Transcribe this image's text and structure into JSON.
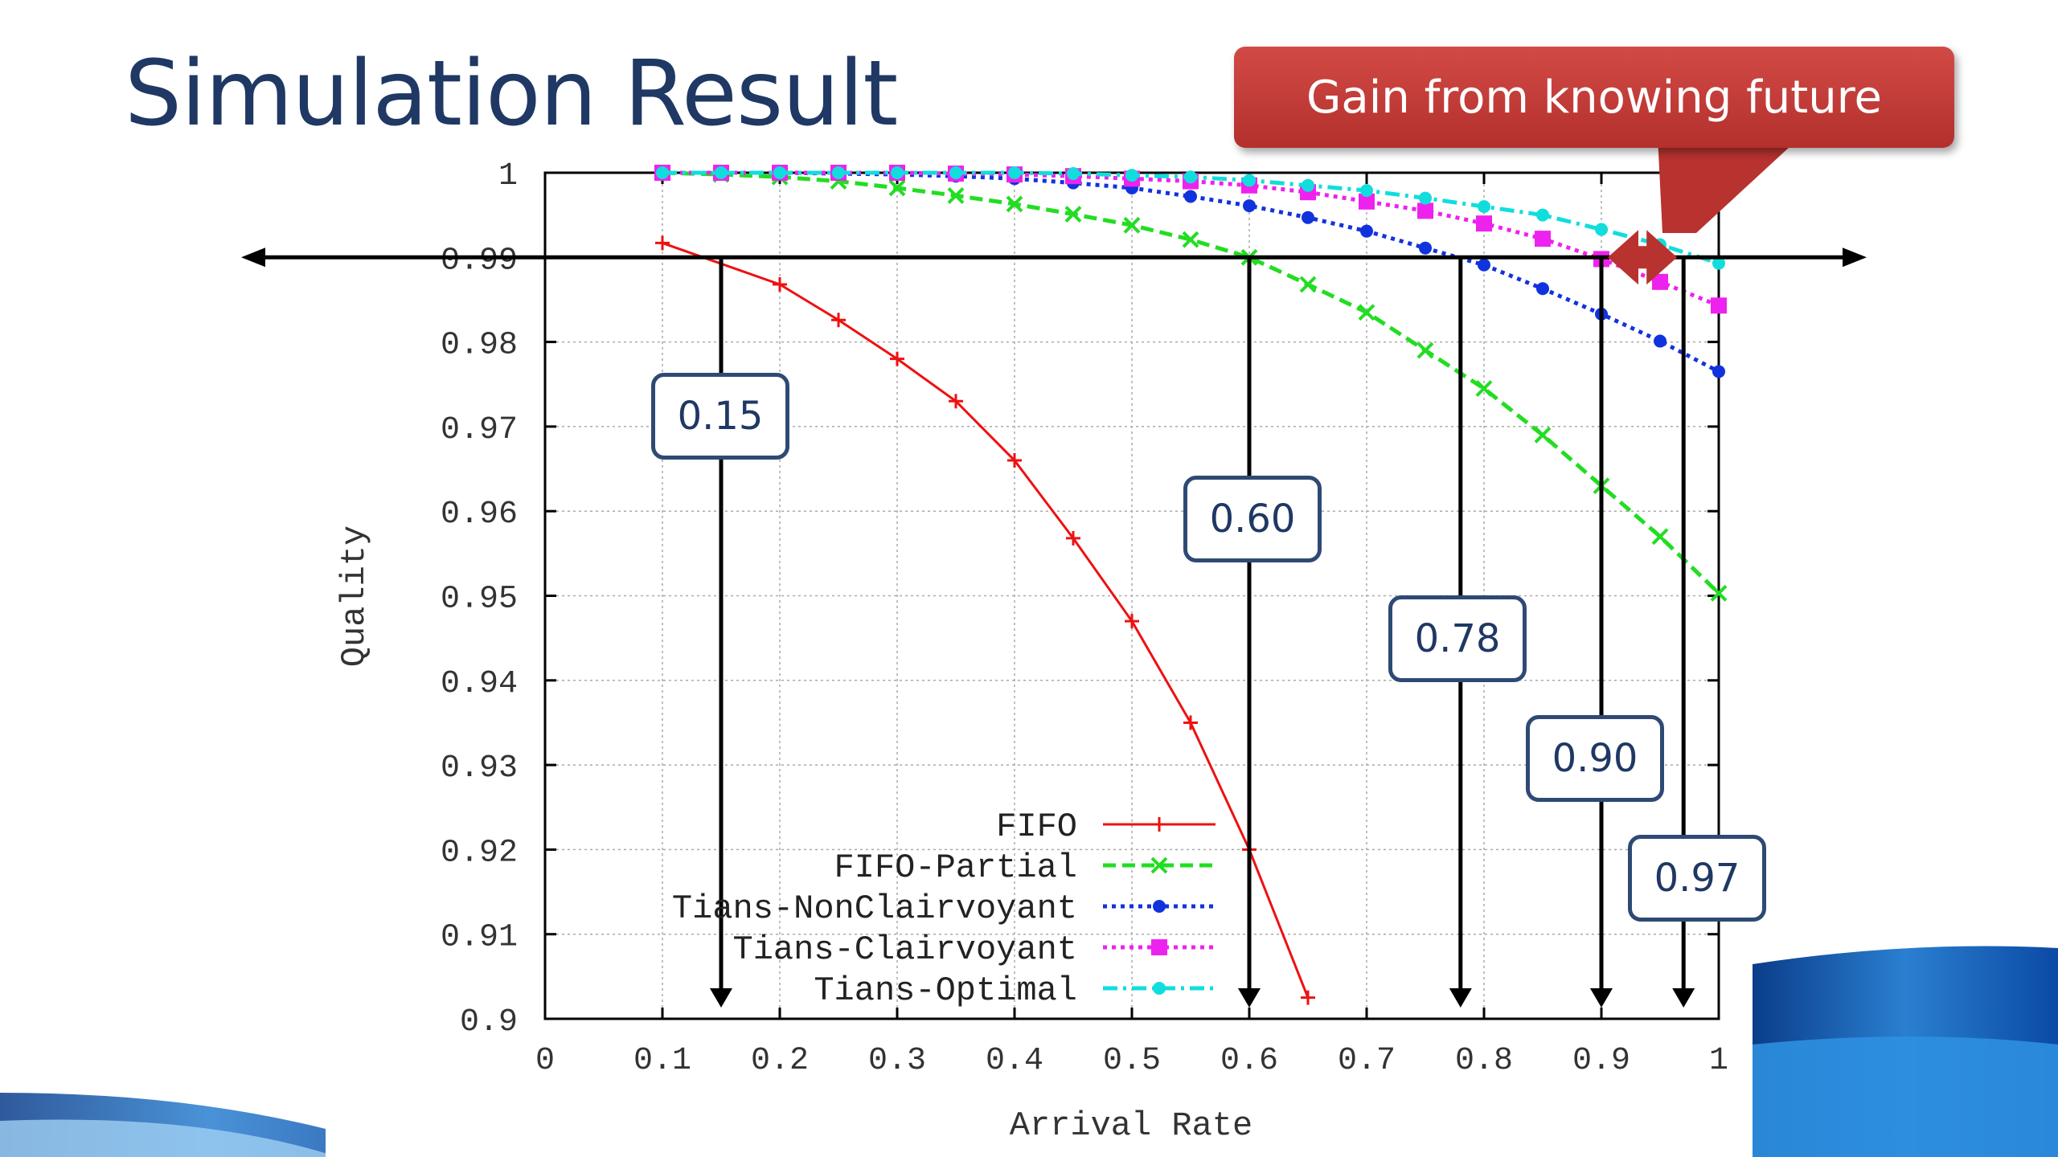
{
  "slide": {
    "title": "Simulation Result",
    "callout": "Gain from knowing future"
  },
  "chart_data": {
    "type": "line",
    "xlabel": "Arrival Rate",
    "ylabel": "Quality",
    "xlim": [
      0,
      1
    ],
    "ylim": [
      0.9,
      1
    ],
    "x_ticks": [
      "0",
      "0.1",
      "0.2",
      "0.3",
      "0.4",
      "0.5",
      "0.6",
      "0.7",
      "0.8",
      "0.9",
      "1"
    ],
    "y_ticks": [
      "0.9",
      "0.91",
      "0.92",
      "0.93",
      "0.94",
      "0.95",
      "0.96",
      "0.97",
      "0.98",
      "0.99",
      "1"
    ],
    "grid": true,
    "legend_position": "bottom-center",
    "threshold": 0.99,
    "series": [
      {
        "name": "FIFO",
        "color": "#ee1111",
        "style": "solid",
        "marker": "plus",
        "x": [
          0.1,
          0.2,
          0.25,
          0.3,
          0.35,
          0.4,
          0.45,
          0.5,
          0.55,
          0.6,
          0.65
        ],
        "y": [
          0.9917,
          0.9868,
          0.9826,
          0.978,
          0.973,
          0.966,
          0.9568,
          0.947,
          0.935,
          0.92,
          0.9025
        ]
      },
      {
        "name": "FIFO-Partial",
        "color": "#22dd22",
        "style": "dashed",
        "marker": "x",
        "x": [
          0.1,
          0.15,
          0.2,
          0.25,
          0.3,
          0.35,
          0.4,
          0.45,
          0.5,
          0.55,
          0.6,
          0.65,
          0.7,
          0.75,
          0.8,
          0.85,
          0.9,
          0.95,
          1.0
        ],
        "y": [
          1.0,
          0.9998,
          0.9995,
          0.999,
          0.9982,
          0.9973,
          0.9963,
          0.9951,
          0.9938,
          0.9921,
          0.99,
          0.9868,
          0.9835,
          0.979,
          0.9745,
          0.969,
          0.963,
          0.957,
          0.9503
        ]
      },
      {
        "name": "Tians-NonClairvoyant",
        "color": "#1133dd",
        "style": "dotted",
        "marker": "star",
        "x": [
          0.1,
          0.15,
          0.2,
          0.25,
          0.3,
          0.35,
          0.4,
          0.45,
          0.5,
          0.55,
          0.6,
          0.65,
          0.7,
          0.75,
          0.8,
          0.85,
          0.9,
          0.95,
          1.0
        ],
        "y": [
          1.0,
          1.0,
          1.0,
          0.9999,
          0.9998,
          0.9996,
          0.9993,
          0.9988,
          0.9982,
          0.9972,
          0.9961,
          0.9947,
          0.9931,
          0.9911,
          0.9891,
          0.9863,
          0.9833,
          0.9801,
          0.9765
        ]
      },
      {
        "name": "Tians-Clairvoyant",
        "color": "#ee22ee",
        "style": "dotted",
        "marker": "square",
        "x": [
          0.1,
          0.15,
          0.2,
          0.25,
          0.3,
          0.35,
          0.4,
          0.45,
          0.5,
          0.55,
          0.6,
          0.65,
          0.7,
          0.75,
          0.8,
          0.85,
          0.9,
          0.95,
          1.0
        ],
        "y": [
          1.0,
          1.0,
          1.0,
          1.0,
          1.0,
          0.9999,
          0.9998,
          0.9996,
          0.9993,
          0.999,
          0.9985,
          0.9977,
          0.9966,
          0.9955,
          0.994,
          0.9922,
          0.9898,
          0.9871,
          0.9843
        ]
      },
      {
        "name": "Tians-Optimal",
        "color": "#11dddd",
        "style": "dashdot",
        "marker": "circle",
        "x": [
          0.1,
          0.15,
          0.2,
          0.25,
          0.3,
          0.35,
          0.4,
          0.45,
          0.5,
          0.55,
          0.6,
          0.65,
          0.7,
          0.75,
          0.8,
          0.85,
          0.9,
          0.95,
          1.0
        ],
        "y": [
          1.0,
          1.0,
          1.0,
          1.0,
          1.0,
          1.0,
          1.0,
          0.9999,
          0.9997,
          0.9995,
          0.9991,
          0.9985,
          0.9979,
          0.997,
          0.996,
          0.995,
          0.9933,
          0.9915,
          0.9893
        ]
      }
    ],
    "annotations": [
      {
        "label": "0.15",
        "x": 0.15
      },
      {
        "label": "0.60",
        "x": 0.6
      },
      {
        "label": "0.78",
        "x": 0.78
      },
      {
        "label": "0.90",
        "x": 0.9
      },
      {
        "label": "0.97",
        "x": 0.97
      }
    ]
  }
}
